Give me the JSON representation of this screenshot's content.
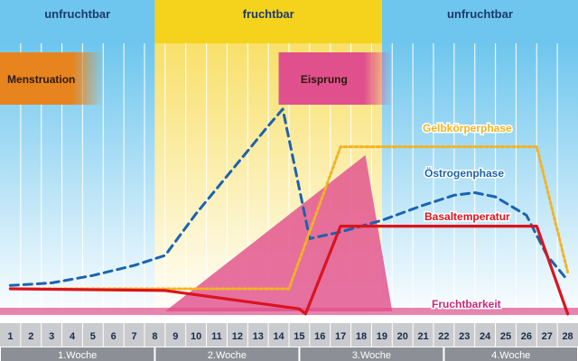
{
  "chart_data": {
    "type": "line",
    "title": "",
    "xlabel": "",
    "ylabel": "",
    "x": [
      1,
      2,
      3,
      4,
      5,
      6,
      7,
      8,
      9,
      10,
      11,
      12,
      13,
      14,
      15,
      16,
      17,
      18,
      19,
      20,
      21,
      22,
      23,
      24,
      25,
      26,
      27,
      28
    ],
    "x_tick_labels": [
      "1",
      "2",
      "3",
      "4",
      "5",
      "6",
      "7",
      "8",
      "9",
      "10",
      "11",
      "12",
      "13",
      "14",
      "15",
      "16",
      "17",
      "18",
      "19",
      "20",
      "21",
      "22",
      "23",
      "24",
      "25",
      "26",
      "27",
      "28"
    ],
    "weeks": [
      {
        "label": "1.Woche",
        "from": 1,
        "to": 7
      },
      {
        "label": "2.Woche",
        "from": 8,
        "to": 14
      },
      {
        "label": "3.Woche",
        "from": 15,
        "to": 21
      },
      {
        "label": "4.Woche",
        "from": 22,
        "to": 28
      }
    ],
    "phases": [
      {
        "label": "unfruchtbar",
        "from": 1,
        "to": 8.5,
        "color": "#6ec6ee"
      },
      {
        "label": "fruchtbar",
        "from": 8.5,
        "to": 19.5,
        "color": "#f5d31c"
      },
      {
        "label": "unfruchtbar",
        "from": 19.5,
        "to": 28,
        "color": "#6ec6ee"
      }
    ],
    "events": [
      {
        "label": "Menstruation",
        "from": 1,
        "to": 5,
        "color": "#e8841e"
      },
      {
        "label": "Eisprung",
        "from": 14.5,
        "to": 19,
        "color": "#e0508c"
      }
    ],
    "series": [
      {
        "name": "Östrogenphase",
        "color": "#1a63b0",
        "style": "dashed",
        "points": [
          [
            1,
            4
          ],
          [
            3,
            7
          ],
          [
            5,
            16
          ],
          [
            7,
            28
          ],
          [
            8.5,
            40
          ],
          [
            10,
            90
          ],
          [
            12,
            150
          ],
          [
            13.5,
            195
          ],
          [
            14.2,
            215
          ],
          [
            15,
            120
          ],
          [
            15.5,
            60
          ],
          [
            17,
            68
          ],
          [
            19,
            82
          ],
          [
            21,
            100
          ],
          [
            22.5,
            112
          ],
          [
            23.5,
            115
          ],
          [
            24.5,
            110
          ],
          [
            26,
            88
          ],
          [
            27,
            40
          ],
          [
            28,
            10
          ]
        ]
      },
      {
        "name": "Gelbkörperphase",
        "color": "#f2b322",
        "style": "dotted",
        "points": [
          [
            1,
            0
          ],
          [
            14.5,
            0
          ],
          [
            17,
            170
          ],
          [
            26.5,
            170
          ],
          [
            28,
            20
          ]
        ]
      },
      {
        "name": "Basaltemperatur",
        "color": "#d9141e",
        "style": "solid",
        "points": [
          [
            1,
            0
          ],
          [
            8.5,
            -2
          ],
          [
            15,
            -24
          ],
          [
            15.3,
            -30
          ],
          [
            17,
            75
          ],
          [
            26.5,
            75
          ],
          [
            28,
            -30
          ]
        ]
      }
    ],
    "fruchtbarkeit": {
      "name": "Fruchtbarkeit",
      "color": "#e0508c",
      "baseline": -27,
      "triangle": [
        [
          8.5,
          -27
        ],
        [
          18.2,
          160
        ],
        [
          19.5,
          -27
        ]
      ]
    },
    "ylim": [
      -45,
      270
    ],
    "grid": true
  }
}
